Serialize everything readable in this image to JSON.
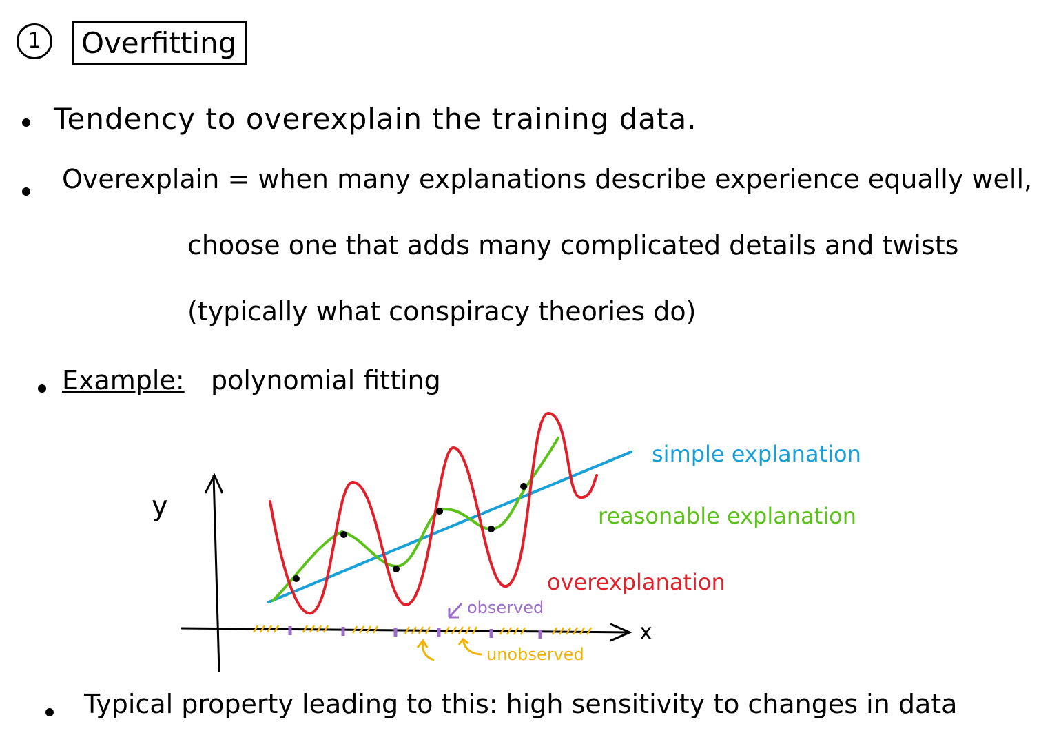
{
  "heading": {
    "number": "1",
    "title": "Overfitting"
  },
  "bullets": {
    "b1": "Tendency to overexplain the training data.",
    "b2_line1": "Overexplain = when many explanations describe experience equally well,",
    "b2_line2": "choose one that adds many complicated details and twists",
    "b2_line3": "(typically what conspiracy theories do)",
    "b3_label": "Example:",
    "b3_text": "polynomial fitting",
    "b4": "Typical property leading to this: high sensitivity to changes in data"
  },
  "diagram": {
    "y_label": "y",
    "x_label": "x",
    "simple_label": "simple explanation",
    "reasonable_label": "reasonable explanation",
    "overexplanation_label": "overexplanation",
    "observed_label": "observed",
    "unobserved_label": "unobserved",
    "colors": {
      "simple": "#1aa0d8",
      "reasonable": "#5cc21a",
      "overexplanation": "#e0202a",
      "observed": "#9b6cc8",
      "unobserved": "#f2b300"
    }
  }
}
